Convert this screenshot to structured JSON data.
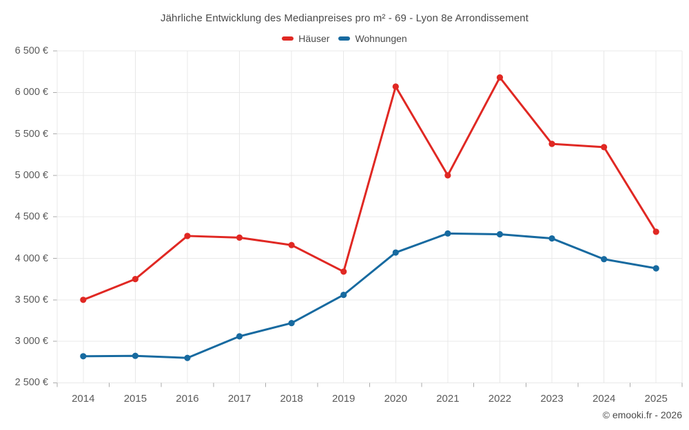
{
  "attribution": "© emooki.fr - 2026",
  "chart_data": {
    "type": "line",
    "title": "Jährliche Entwicklung des Medianpreises pro m² - 69 - Lyon 8e Arrondissement",
    "x": [
      "2014",
      "2015",
      "2016",
      "2017",
      "2018",
      "2019",
      "2020",
      "2021",
      "2022",
      "2023",
      "2024",
      "2025"
    ],
    "series": [
      {
        "name": "Häuser",
        "color": "#e02823",
        "values": [
          3500,
          3750,
          4270,
          4250,
          4160,
          3840,
          6070,
          5000,
          6180,
          5380,
          5340,
          4320
        ]
      },
      {
        "name": "Wohnungen",
        "color": "#176aa0",
        "values": [
          2820,
          2825,
          2800,
          3060,
          3220,
          3560,
          4070,
          4300,
          4290,
          4240,
          3990,
          3880
        ]
      }
    ],
    "xlabel": "",
    "ylabel": "",
    "ylim": [
      2500,
      6500
    ],
    "ytick_step": 500,
    "ytick_labels": [
      "2 500 €",
      "3 000 €",
      "3 500 €",
      "4 000 €",
      "4 500 €",
      "5 000 €",
      "5 500 €",
      "6 000 €",
      "6 500 €"
    ],
    "grid": true,
    "legend_position": "top",
    "grid_color": "#e8e8e8",
    "tick_color": "#aaaaaa",
    "marker": "circle"
  }
}
